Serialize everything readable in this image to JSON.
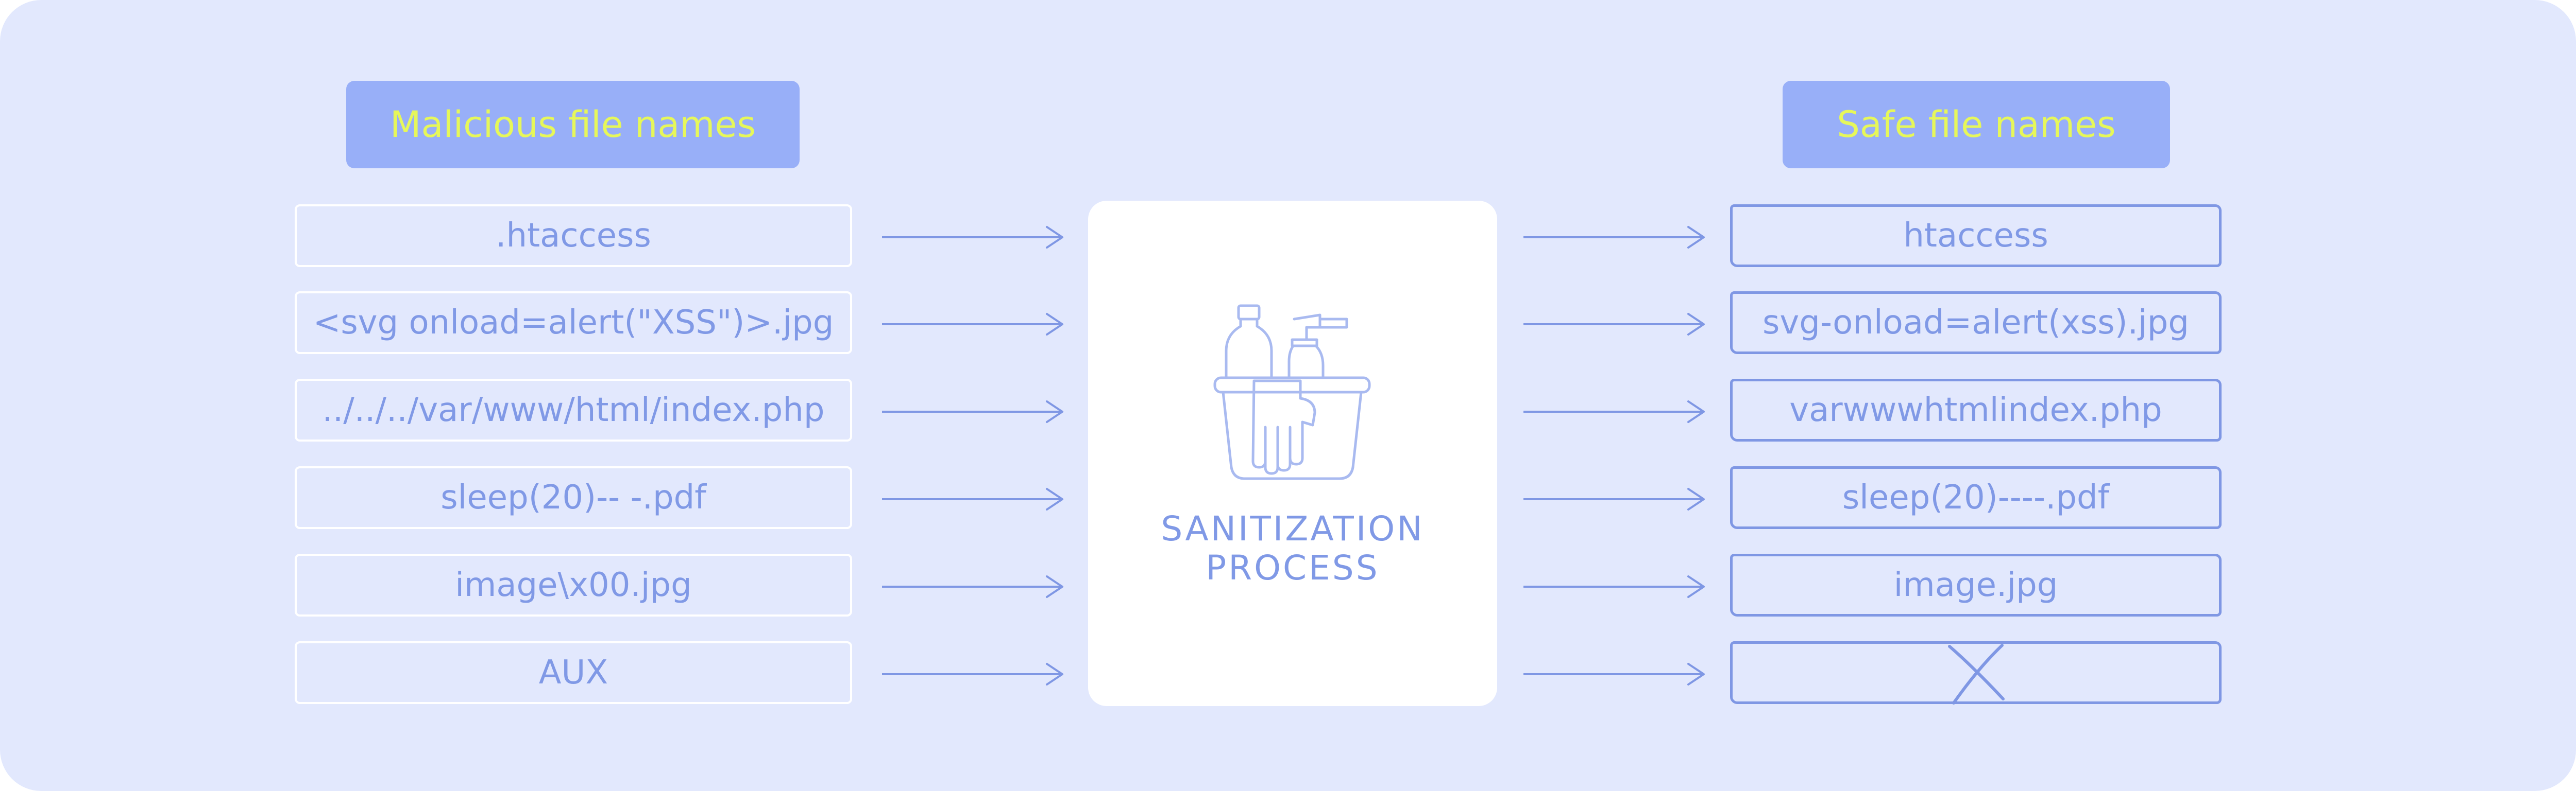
{
  "left_header": "Malicious file names",
  "right_header": "Safe file names",
  "process_label": [
    "SANITIZATION",
    "PROCESS"
  ],
  "malicious": [
    ".htaccess",
    "<svg onload=alert(\"XSS\")>.jpg",
    "../../../var/www/html/index.php",
    "sleep(20)-- -.pdf",
    "image\\x00.jpg",
    "AUX"
  ],
  "safe": [
    "htaccess",
    "svg-onload=alert(xss).jpg",
    "varwwwhtmlindex.php",
    "sleep(20)----.pdf",
    "image.jpg",
    ""
  ],
  "icons": {
    "process": "cleaning-bucket-icon",
    "removed": "cross-icon"
  },
  "colors": {
    "background": "#e2e8fd",
    "header_fill": "#98aff8",
    "header_text": "#e6f75a",
    "text": "#8099e6",
    "line": "#7f97e4"
  }
}
